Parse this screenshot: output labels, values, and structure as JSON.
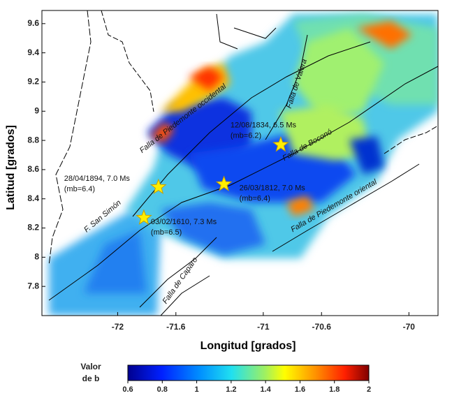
{
  "map": {
    "xlabel": "Longitud [grados]",
    "ylabel": "Latitud [grados]",
    "xlim": [
      -72.52,
      -69.8
    ],
    "ylim": [
      7.6,
      9.69
    ],
    "xticks": [
      -72,
      -71.6,
      -71,
      -70.6,
      -70
    ],
    "yticks": [
      9.6,
      9.4,
      9.2,
      9,
      8.8,
      8.6,
      8.4,
      8.2,
      8,
      7.8
    ],
    "faults": [
      "Falla de Piedemonte occidental",
      "Falla de Valera",
      "Falla de Boconó",
      "Falla de Piedemonte oriental",
      "F. San Simón",
      "Falla de Caparo"
    ],
    "quakes": [
      {
        "label": "28/04/1894, 7.0 Ms",
        "mb": "(mb=6.4)",
        "lon": -71.72,
        "lat": 8.48
      },
      {
        "label": "26/03/1812, 7.0 Ms",
        "mb": "(mb=6.4)",
        "lon": -71.27,
        "lat": 8.5
      },
      {
        "label": "03/02/1610, 7.3 Ms",
        "mb": "(mb=6.5)",
        "lon": -71.82,
        "lat": 8.27
      },
      {
        "label": "12/08/1834, 6.5 Ms",
        "mb": "(mb=6.2)",
        "lon": -70.88,
        "lat": 8.77
      }
    ],
    "colorbar": {
      "label": [
        "Valor",
        "de b"
      ],
      "lim": [
        0.6,
        2
      ],
      "ticks": [
        0.6,
        0.8,
        1,
        1.2,
        1.4,
        1.6,
        1.8,
        2
      ]
    }
  }
}
